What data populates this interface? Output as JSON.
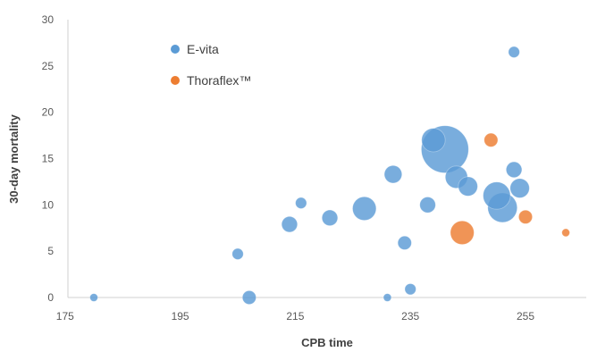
{
  "chart_data": {
    "type": "scatter",
    "subtype": "bubble",
    "title": "",
    "xlabel": "CPB time",
    "ylabel": "30-day mortality",
    "xlim": [
      175,
      265
    ],
    "ylim": [
      0,
      30
    ],
    "xticks": [
      "175",
      "195",
      "215",
      "235",
      "255"
    ],
    "yticks": [
      "0",
      "5",
      "10",
      "15",
      "20",
      "25",
      "30"
    ],
    "grid": false,
    "legend_position": "top-left",
    "series": [
      {
        "name": "E-vita",
        "color": "#5B9BD5",
        "points": [
          {
            "x": 180,
            "y": 0,
            "size": 1
          },
          {
            "x": 207,
            "y": 0,
            "size": 3
          },
          {
            "x": 205,
            "y": 4.7,
            "size": 2
          },
          {
            "x": 216,
            "y": 10.2,
            "size": 2
          },
          {
            "x": 214,
            "y": 7.9,
            "size": 4
          },
          {
            "x": 221,
            "y": 8.6,
            "size": 4
          },
          {
            "x": 227,
            "y": 9.6,
            "size": 9
          },
          {
            "x": 231,
            "y": 0,
            "size": 1
          },
          {
            "x": 232,
            "y": 13.3,
            "size": 5
          },
          {
            "x": 234,
            "y": 5.9,
            "size": 3
          },
          {
            "x": 235,
            "y": 0.9,
            "size": 2
          },
          {
            "x": 238,
            "y": 10,
            "size": 4
          },
          {
            "x": 239,
            "y": 17,
            "size": 9
          },
          {
            "x": 241,
            "y": 16,
            "size": 36
          },
          {
            "x": 243,
            "y": 13,
            "size": 8
          },
          {
            "x": 245,
            "y": 12,
            "size": 6
          },
          {
            "x": 250,
            "y": 11,
            "size": 12
          },
          {
            "x": 251,
            "y": 9.7,
            "size": 14
          },
          {
            "x": 253,
            "y": 13.8,
            "size": 4
          },
          {
            "x": 254,
            "y": 11.8,
            "size": 6
          },
          {
            "x": 253,
            "y": 26.5,
            "size": 2
          }
        ]
      },
      {
        "name": "Thoraflex™",
        "color": "#ED7D31",
        "points": [
          {
            "x": 249,
            "y": 17,
            "size": 3
          },
          {
            "x": 255,
            "y": 8.7,
            "size": 3
          },
          {
            "x": 244,
            "y": 7,
            "size": 9
          },
          {
            "x": 262,
            "y": 7,
            "size": 1
          }
        ]
      }
    ]
  }
}
